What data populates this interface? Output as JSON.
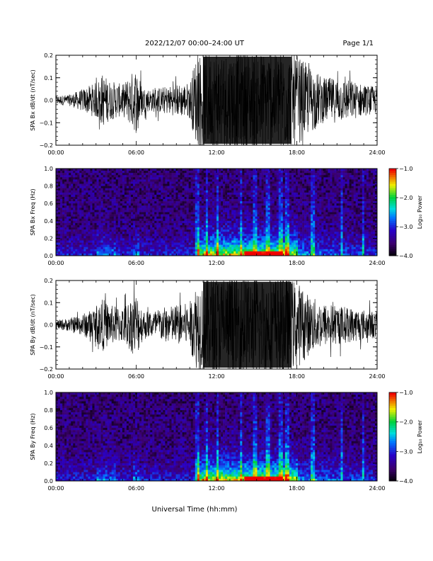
{
  "header": {
    "title": "2022/12/07  00:00–24:00 UT",
    "page": "Page 1/1"
  },
  "footer": {
    "xlabel": "Universal Time (hh:mm)"
  },
  "colors": {
    "trace": "#000000",
    "frame": "#000000"
  },
  "chart_data": [
    {
      "type": "line",
      "ylabel": "SPA Bx dB/dt (nT/sec)",
      "ylim": [
        -0.2,
        0.2
      ],
      "yticks": [
        "0.2",
        "0.1",
        "0.0",
        "−0.1",
        "−0.2"
      ],
      "xticks": [
        "00:00",
        "06:00",
        "12:00",
        "18:00",
        "24:00"
      ],
      "xlim": [
        0,
        24
      ],
      "envelope": {
        "x": [
          0,
          1,
          2,
          3,
          3.5,
          4,
          5,
          6,
          6.5,
          7,
          8,
          9,
          10,
          10.5,
          11,
          12,
          13,
          14,
          15,
          16,
          17,
          18,
          19,
          20,
          21,
          22,
          23,
          24
        ],
        "amp": [
          0.02,
          0.025,
          0.05,
          0.08,
          0.12,
          0.09,
          0.07,
          0.15,
          0.06,
          0.05,
          0.06,
          0.07,
          0.08,
          0.2,
          0.22,
          0.22,
          0.22,
          0.22,
          0.22,
          0.22,
          0.22,
          0.2,
          0.15,
          0.1,
          0.1,
          0.09,
          0.07,
          0.06
        ]
      }
    },
    {
      "type": "heatmap",
      "ylabel": "SPA Bx Freq (Hz)",
      "ylim": [
        0,
        1.0
      ],
      "yticks": [
        "1.0",
        "0.8",
        "0.6",
        "0.4",
        "0.2",
        "0.0"
      ],
      "xticks": [
        "00:00",
        "06:00",
        "12:00",
        "18:00",
        "24:00"
      ],
      "xlim": [
        0,
        24
      ],
      "colorbar": {
        "label": "Log₁₀ Power",
        "ticks": [
          "−1.0",
          "−2.0",
          "−3.0",
          "−4.0"
        ],
        "range": [
          -4.0,
          -1.0
        ]
      }
    },
    {
      "type": "line",
      "ylabel": "SPA By dB/dt (nT/sec)",
      "ylim": [
        -0.2,
        0.2
      ],
      "yticks": [
        "0.2",
        "0.1",
        "0.0",
        "−0.1",
        "−0.2"
      ],
      "xticks": [
        "00:00",
        "06:00",
        "12:00",
        "18:00",
        "24:00"
      ],
      "xlim": [
        0,
        24
      ],
      "envelope": {
        "x": [
          0,
          1,
          2,
          3,
          3.5,
          4,
          5,
          6,
          6.5,
          7,
          8,
          9,
          10,
          10.5,
          11,
          12,
          13,
          14,
          15,
          16,
          17,
          18,
          19,
          20,
          21,
          22,
          23,
          24
        ],
        "amp": [
          0.02,
          0.03,
          0.05,
          0.08,
          0.12,
          0.09,
          0.08,
          0.15,
          0.07,
          0.06,
          0.08,
          0.09,
          0.1,
          0.2,
          0.22,
          0.22,
          0.22,
          0.22,
          0.22,
          0.22,
          0.22,
          0.2,
          0.13,
          0.1,
          0.09,
          0.08,
          0.07,
          0.06
        ]
      }
    },
    {
      "type": "heatmap",
      "ylabel": "SPA By Freq (Hz)",
      "ylim": [
        0,
        1.0
      ],
      "yticks": [
        "1.0",
        "0.8",
        "0.6",
        "0.4",
        "0.2",
        "0.0"
      ],
      "xticks": [
        "00:00",
        "06:00",
        "12:00",
        "18:00",
        "24:00"
      ],
      "xlim": [
        0,
        24
      ],
      "colorbar": {
        "label": "Log₁₀ Power",
        "ticks": [
          "−1.0",
          "−2.0",
          "−3.0",
          "−4.0"
        ],
        "range": [
          -4.0,
          -1.0
        ]
      }
    }
  ]
}
